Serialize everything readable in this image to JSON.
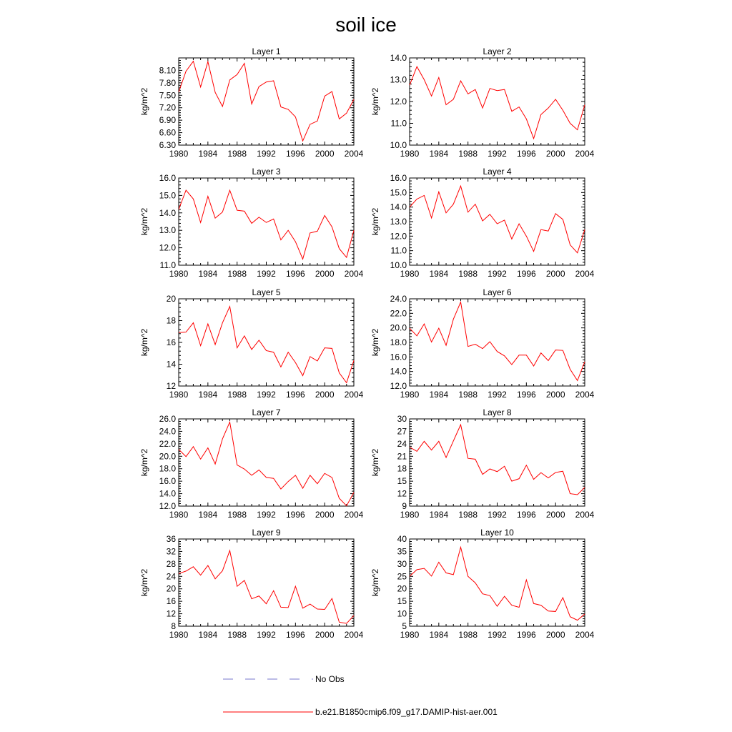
{
  "figure": {
    "title": "soil ice"
  },
  "legend": {
    "items": [
      {
        "label": "No Obs",
        "color": "#7777cc",
        "style": "dashed"
      },
      {
        "label": "b.e21.B1850cmip6.f09_g17.DAMIP-hist-aer.001",
        "color": "#ff0000",
        "style": "solid"
      }
    ]
  },
  "chart_data": [
    {
      "type": "line",
      "title": "Layer 1",
      "xlabel": "",
      "ylabel": "kg/m^2",
      "xlim": [
        1980,
        2004
      ],
      "xticks": [
        1980,
        1984,
        1988,
        1992,
        1996,
        2000,
        2004
      ],
      "ylim": [
        6.3,
        8.4
      ],
      "yticks": [
        "6.30",
        "6.60",
        "6.90",
        "7.20",
        "7.50",
        "7.80",
        "8.10"
      ],
      "x": [
        1980,
        1981,
        1982,
        1983,
        1984,
        1985,
        1986,
        1987,
        1988,
        1989,
        1990,
        1991,
        1992,
        1993,
        1994,
        1995,
        1996,
        1997,
        1998,
        1999,
        2000,
        2001,
        2002,
        2003,
        2004
      ],
      "series": [
        {
          "name": "b.e21.B1850cmip6.f09_g17.DAMIP-hist-aer.001",
          "color": "#ff0000",
          "values": [
            7.58,
            8.08,
            8.32,
            7.7,
            8.31,
            7.57,
            7.23,
            7.87,
            8.0,
            8.27,
            7.29,
            7.71,
            7.82,
            7.85,
            7.22,
            7.16,
            6.98,
            6.4,
            6.8,
            6.88,
            7.48,
            7.59,
            6.93,
            7.07,
            7.4
          ]
        }
      ]
    },
    {
      "type": "line",
      "title": "Layer 2",
      "xlabel": "",
      "ylabel": "kg/m^2",
      "xlim": [
        1980,
        2004
      ],
      "xticks": [
        1980,
        1984,
        1988,
        1992,
        1996,
        2000,
        2004
      ],
      "ylim": [
        10.0,
        14.0
      ],
      "yticks": [
        "10.0",
        "11.0",
        "12.0",
        "13.0",
        "14.0"
      ],
      "x": [
        1980,
        1981,
        1982,
        1983,
        1984,
        1985,
        1986,
        1987,
        1988,
        1989,
        1990,
        1991,
        1992,
        1993,
        1994,
        1995,
        1996,
        1997,
        1998,
        1999,
        2000,
        2001,
        2002,
        2003,
        2004
      ],
      "series": [
        {
          "name": "b.e21.B1850cmip6.f09_g17.DAMIP-hist-aer.001",
          "color": "#ff0000",
          "values": [
            12.75,
            13.6,
            13.0,
            12.25,
            13.1,
            11.85,
            12.1,
            12.95,
            12.35,
            12.55,
            11.7,
            12.6,
            12.5,
            12.55,
            11.55,
            11.75,
            11.2,
            10.3,
            11.4,
            11.7,
            12.1,
            11.6,
            11.0,
            10.7,
            11.85
          ]
        }
      ]
    },
    {
      "type": "line",
      "title": "Layer 3",
      "xlabel": "",
      "ylabel": "kg/m^2",
      "xlim": [
        1980,
        2004
      ],
      "xticks": [
        1980,
        1984,
        1988,
        1992,
        1996,
        2000,
        2004
      ],
      "ylim": [
        11.0,
        16.0
      ],
      "yticks": [
        "11.0",
        "12.0",
        "13.0",
        "14.0",
        "15.0",
        "16.0"
      ],
      "x": [
        1980,
        1981,
        1982,
        1983,
        1984,
        1985,
        1986,
        1987,
        1988,
        1989,
        1990,
        1991,
        1992,
        1993,
        1994,
        1995,
        1996,
        1997,
        1998,
        1999,
        2000,
        2001,
        2002,
        2003,
        2004
      ],
      "series": [
        {
          "name": "b.e21.B1850cmip6.f09_g17.DAMIP-hist-aer.001",
          "color": "#ff0000",
          "values": [
            14.2,
            15.3,
            14.8,
            13.45,
            14.95,
            13.7,
            14.05,
            15.3,
            14.15,
            14.1,
            13.4,
            13.75,
            13.45,
            13.65,
            12.45,
            13.0,
            12.35,
            11.35,
            12.85,
            12.95,
            13.85,
            13.2,
            11.95,
            11.45,
            13.0
          ]
        }
      ]
    },
    {
      "type": "line",
      "title": "Layer 4",
      "xlabel": "",
      "ylabel": "kg/m^2",
      "xlim": [
        1980,
        2004
      ],
      "xticks": [
        1980,
        1984,
        1988,
        1992,
        1996,
        2000,
        2004
      ],
      "ylim": [
        10.0,
        16.0
      ],
      "yticks": [
        "10.0",
        "11.0",
        "12.0",
        "13.0",
        "14.0",
        "15.0",
        "16.0"
      ],
      "x": [
        1980,
        1981,
        1982,
        1983,
        1984,
        1985,
        1986,
        1987,
        1988,
        1989,
        1990,
        1991,
        1992,
        1993,
        1994,
        1995,
        1996,
        1997,
        1998,
        1999,
        2000,
        2001,
        2002,
        2003,
        2004
      ],
      "series": [
        {
          "name": "b.e21.B1850cmip6.f09_g17.DAMIP-hist-aer.001",
          "color": "#ff0000",
          "values": [
            14.0,
            14.55,
            14.8,
            13.25,
            15.05,
            13.6,
            14.2,
            15.45,
            13.65,
            14.2,
            13.05,
            13.5,
            12.85,
            13.1,
            11.8,
            12.85,
            12.0,
            10.95,
            12.45,
            12.35,
            13.55,
            13.15,
            11.4,
            10.85,
            12.45
          ]
        }
      ]
    },
    {
      "type": "line",
      "title": "Layer 5",
      "xlabel": "",
      "ylabel": "kg/m^2",
      "xlim": [
        1980,
        2004
      ],
      "xticks": [
        1980,
        1984,
        1988,
        1992,
        1996,
        2000,
        2004
      ],
      "ylim": [
        12,
        20
      ],
      "yticks": [
        "12",
        "14",
        "16",
        "18",
        "20"
      ],
      "x": [
        1980,
        1981,
        1982,
        1983,
        1984,
        1985,
        1986,
        1987,
        1988,
        1989,
        1990,
        1991,
        1992,
        1993,
        1994,
        1995,
        1996,
        1997,
        1998,
        1999,
        2000,
        2001,
        2002,
        2003,
        2004
      ],
      "series": [
        {
          "name": "b.e21.B1850cmip6.f09_g17.DAMIP-hist-aer.001",
          "color": "#ff0000",
          "values": [
            16.9,
            16.95,
            17.8,
            15.7,
            17.7,
            15.8,
            17.8,
            19.3,
            15.5,
            16.6,
            15.35,
            16.2,
            15.25,
            15.1,
            13.75,
            15.1,
            14.15,
            12.95,
            14.7,
            14.3,
            15.5,
            15.45,
            13.2,
            12.3,
            14.35
          ]
        }
      ]
    },
    {
      "type": "line",
      "title": "Layer 6",
      "xlabel": "",
      "ylabel": "kg/m^2",
      "xlim": [
        1980,
        2004
      ],
      "xticks": [
        1980,
        1984,
        1988,
        1992,
        1996,
        2000,
        2004
      ],
      "ylim": [
        12.0,
        24.0
      ],
      "yticks": [
        "12.0",
        "14.0",
        "16.0",
        "18.0",
        "20.0",
        "22.0",
        "24.0"
      ],
      "x": [
        1980,
        1981,
        1982,
        1983,
        1984,
        1985,
        1986,
        1987,
        1988,
        1989,
        1990,
        1991,
        1992,
        1993,
        1994,
        1995,
        1996,
        1997,
        1998,
        1999,
        2000,
        2001,
        2002,
        2003,
        2004
      ],
      "series": [
        {
          "name": "b.e21.B1850cmip6.f09_g17.DAMIP-hist-aer.001",
          "color": "#ff0000",
          "values": [
            19.95,
            18.9,
            20.55,
            18.05,
            19.95,
            17.6,
            21.2,
            23.55,
            17.45,
            17.75,
            17.15,
            18.1,
            16.75,
            16.15,
            14.95,
            16.25,
            16.25,
            14.75,
            16.55,
            15.5,
            16.95,
            16.9,
            14.3,
            12.75,
            15.35
          ]
        }
      ]
    },
    {
      "type": "line",
      "title": "Layer 7",
      "xlabel": "",
      "ylabel": "kg/m^2",
      "xlim": [
        1980,
        2004
      ],
      "xticks": [
        1980,
        1984,
        1988,
        1992,
        1996,
        2000,
        2004
      ],
      "ylim": [
        12.0,
        26.0
      ],
      "yticks": [
        "12.0",
        "14.0",
        "16.0",
        "18.0",
        "20.0",
        "22.0",
        "24.0",
        "26.0"
      ],
      "x": [
        1980,
        1981,
        1982,
        1983,
        1984,
        1985,
        1986,
        1987,
        1988,
        1989,
        1990,
        1991,
        1992,
        1993,
        1994,
        1995,
        1996,
        1997,
        1998,
        1999,
        2000,
        2001,
        2002,
        2003,
        2004
      ],
      "series": [
        {
          "name": "b.e21.B1850cmip6.f09_g17.DAMIP-hist-aer.001",
          "color": "#ff0000",
          "values": [
            21.1,
            19.95,
            21.55,
            19.55,
            21.35,
            18.75,
            22.8,
            25.5,
            18.6,
            17.95,
            16.95,
            17.8,
            16.6,
            16.45,
            14.75,
            15.95,
            16.95,
            14.85,
            16.95,
            15.6,
            17.25,
            16.6,
            13.25,
            12.05,
            14.2
          ]
        }
      ]
    },
    {
      "type": "line",
      "title": "Layer 8",
      "xlabel": "",
      "ylabel": "kg/m^2",
      "xlim": [
        1980,
        2004
      ],
      "xticks": [
        1980,
        1984,
        1988,
        1992,
        1996,
        2000,
        2004
      ],
      "ylim": [
        9,
        30
      ],
      "yticks": [
        "9",
        "12",
        "15",
        "18",
        "21",
        "24",
        "27",
        "30"
      ],
      "x": [
        1980,
        1981,
        1982,
        1983,
        1984,
        1985,
        1986,
        1987,
        1988,
        1989,
        1990,
        1991,
        1992,
        1993,
        1994,
        1995,
        1996,
        1997,
        1998,
        1999,
        2000,
        2001,
        2002,
        2003,
        2004
      ],
      "series": [
        {
          "name": "b.e21.B1850cmip6.f09_g17.DAMIP-hist-aer.001",
          "color": "#ff0000",
          "values": [
            23.2,
            22.2,
            24.6,
            22.5,
            24.6,
            20.7,
            24.7,
            28.6,
            20.5,
            20.3,
            16.65,
            17.95,
            17.3,
            18.6,
            15.0,
            15.6,
            18.85,
            15.45,
            17.05,
            15.8,
            17.1,
            17.4,
            12.0,
            11.75,
            13.5
          ]
        }
      ]
    },
    {
      "type": "line",
      "title": "Layer 9",
      "xlabel": "",
      "ylabel": "kg/m^2",
      "xlim": [
        1980,
        2004
      ],
      "xticks": [
        1980,
        1984,
        1988,
        1992,
        1996,
        2000,
        2004
      ],
      "ylim": [
        8,
        36
      ],
      "yticks": [
        "8",
        "12",
        "16",
        "20",
        "24",
        "28",
        "32",
        "36"
      ],
      "x": [
        1980,
        1981,
        1982,
        1983,
        1984,
        1985,
        1986,
        1987,
        1988,
        1989,
        1990,
        1991,
        1992,
        1993,
        1994,
        1995,
        1996,
        1997,
        1998,
        1999,
        2000,
        2001,
        2002,
        2003,
        2004
      ],
      "series": [
        {
          "name": "b.e21.B1850cmip6.f09_g17.DAMIP-hist-aer.001",
          "color": "#ff0000",
          "values": [
            24.9,
            25.7,
            27.1,
            24.4,
            27.5,
            23.2,
            25.8,
            32.3,
            20.8,
            22.7,
            16.8,
            17.7,
            15.2,
            19.4,
            14.1,
            14.0,
            20.8,
            13.8,
            15.1,
            13.5,
            13.4,
            16.9,
            9.3,
            8.9,
            11.4
          ]
        }
      ]
    },
    {
      "type": "line",
      "title": "Layer 10",
      "xlabel": "",
      "ylabel": "kg/m^2",
      "xlim": [
        1980,
        2004
      ],
      "xticks": [
        1980,
        1984,
        1988,
        1992,
        1996,
        2000,
        2004
      ],
      "ylim": [
        5,
        40
      ],
      "yticks": [
        "5",
        "10",
        "15",
        "20",
        "25",
        "30",
        "35",
        "40"
      ],
      "x": [
        1980,
        1981,
        1982,
        1983,
        1984,
        1985,
        1986,
        1987,
        1988,
        1989,
        1990,
        1991,
        1992,
        1993,
        1994,
        1995,
        1996,
        1997,
        1998,
        1999,
        2000,
        2001,
        2002,
        2003,
        2004
      ],
      "series": [
        {
          "name": "b.e21.B1850cmip6.f09_g17.DAMIP-hist-aer.001",
          "color": "#ff0000",
          "values": [
            25.0,
            27.7,
            28.2,
            25.1,
            30.7,
            26.4,
            25.7,
            36.7,
            25.0,
            22.4,
            18.0,
            17.3,
            13.0,
            17.0,
            13.4,
            12.6,
            23.6,
            14.1,
            13.4,
            11.1,
            10.9,
            16.5,
            8.8,
            7.4,
            9.9
          ]
        }
      ]
    }
  ]
}
